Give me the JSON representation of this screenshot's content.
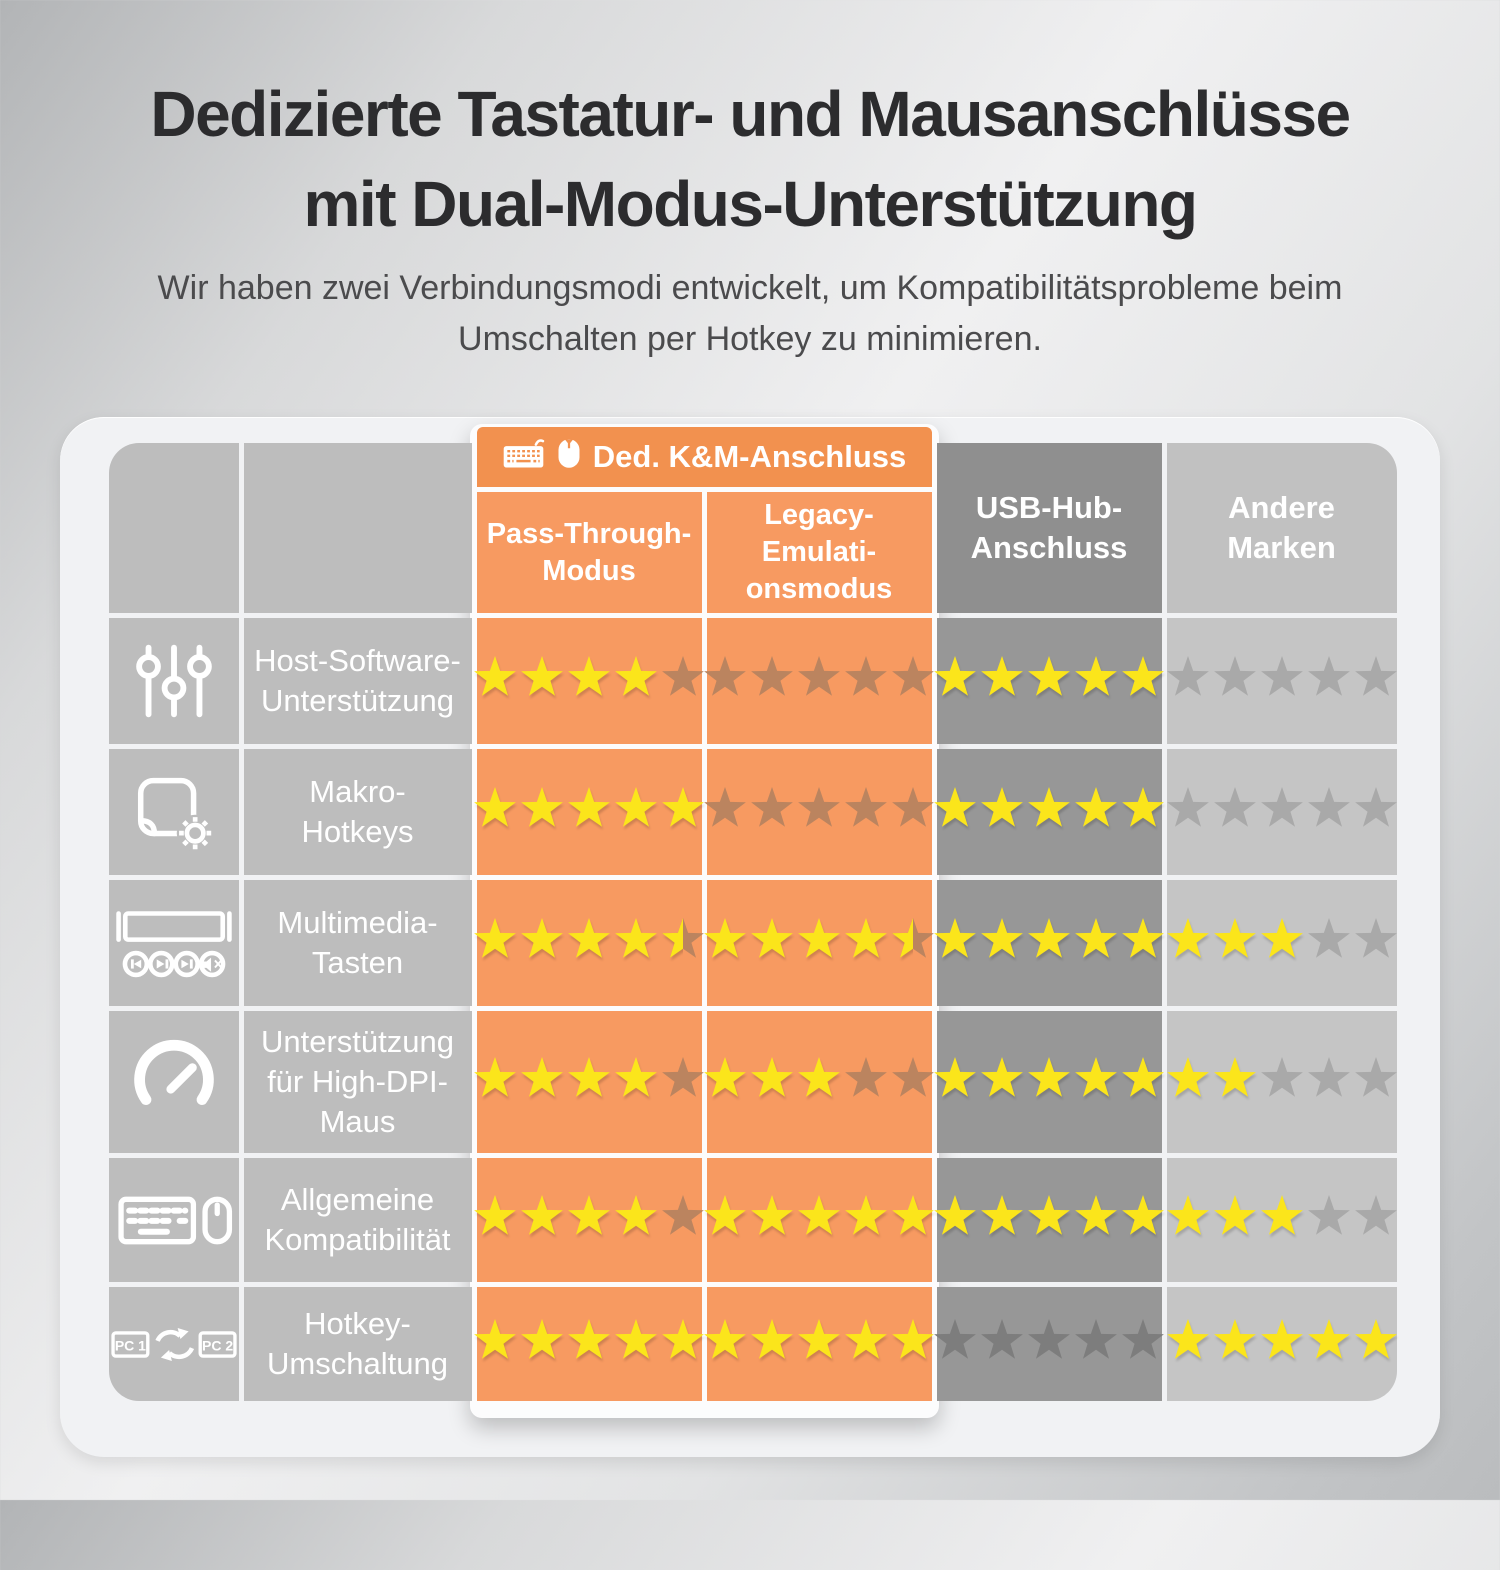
{
  "header": {
    "title": "Dedizierte Tastatur- und Mausanschlüsse\nmit Dual-Modus-Unterstützung",
    "subtitle": "Wir haben zwei Verbindungsmodi entwickelt, um Kompatibilitätsprobleme beim\nUmschalten per Hotkey zu minimieren."
  },
  "table": {
    "km_group_header": "Ded. K&M-Anschluss",
    "km_group_icons": [
      "keyboard-icon",
      "mouse-icon"
    ],
    "columns": [
      {
        "id": "pass",
        "label": "Pass-Through-\nModus"
      },
      {
        "id": "legacy",
        "label": "Legacy-\nEmulati-\nonsmodus"
      },
      {
        "id": "usb",
        "label": "USB-Hub-\nAnschluss"
      },
      {
        "id": "andere",
        "label": "Andere\nMarken"
      }
    ],
    "rows": [
      {
        "icon": "sliders-icon",
        "label": "Host-Software-\nUnterstützung",
        "ratings": [
          4,
          0,
          5,
          0
        ]
      },
      {
        "icon": "macro-icon",
        "label": "Makro-\nHotkeys",
        "ratings": [
          5,
          0,
          5,
          0
        ]
      },
      {
        "icon": "multimedia-icon",
        "label": "Multimedia-\nTasten",
        "ratings": [
          4.5,
          4.5,
          5,
          3
        ]
      },
      {
        "icon": "gauge-icon",
        "label": "Unterstützung\nfür High-DPI-\nMaus",
        "ratings": [
          4,
          3,
          5,
          2
        ]
      },
      {
        "icon": "keyboard-mouse-icon",
        "label": "Allgemeine\nKompatibilität",
        "ratings": [
          4,
          5,
          5,
          3
        ]
      },
      {
        "icon": "pc-switch-icon",
        "label": "Hotkey-\nUmschaltung",
        "ratings": [
          5,
          5,
          0,
          5
        ]
      }
    ],
    "max_rating": 5
  },
  "colors": {
    "accent_orange": "#f79a61",
    "orange_deep": "#f2914f",
    "star_yellow": "#fbe51b",
    "star_empty_on_orange": "#bb845f",
    "star_empty_on_dark": "#7d7d7d",
    "star_empty_on_light": "#a9a9a9",
    "col_dark": "#979797",
    "col_dark_header": "#8f8f8f",
    "col_light": "#c5c5c5",
    "col_light_header": "#c1c1c1",
    "label_bg": "#bdbdbd",
    "panel_bg": "#f1f2f4"
  },
  "chart_data": {
    "type": "table",
    "title": "Dedizierte Tastatur- und Mausanschlüsse mit Dual-Modus-Unterstützung",
    "subtitle": "Wir haben zwei Verbindungsmodi entwickelt, um Kompatibilitätsprobleme beim Umschalten per Hotkey zu minimieren.",
    "value_scale": "Sterne von 0 bis 5",
    "column_group": {
      "name": "Ded. K&M-Anschluss",
      "members": [
        "Pass-Through-Modus",
        "Legacy-Emulationsmodus"
      ]
    },
    "categories": [
      "Host-Software-Unterstützung",
      "Makro-Hotkeys",
      "Multimedia-Tasten",
      "Unterstützung für High-DPI-Maus",
      "Allgemeine Kompatibilität",
      "Hotkey-Umschaltung"
    ],
    "series": [
      {
        "name": "Pass-Through-Modus",
        "values": [
          4,
          5,
          4.5,
          4,
          4,
          5
        ]
      },
      {
        "name": "Legacy-Emulationsmodus",
        "values": [
          0,
          0,
          4.5,
          3,
          5,
          5
        ]
      },
      {
        "name": "USB-Hub-Anschluss",
        "values": [
          5,
          5,
          5,
          5,
          5,
          0
        ]
      },
      {
        "name": "Andere Marken",
        "values": [
          0,
          0,
          3,
          2,
          3,
          5
        ]
      }
    ]
  }
}
